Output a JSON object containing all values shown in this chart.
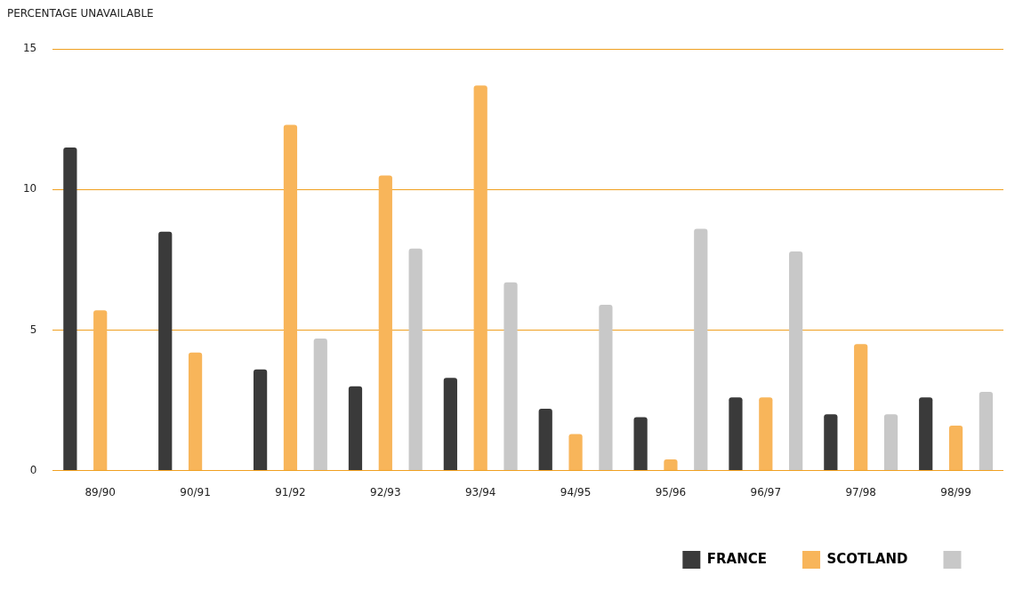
{
  "chart_data": {
    "type": "bar",
    "ylabel": "PERCENTAGE UNAVAILABLE",
    "categories": [
      "89/90",
      "90/91",
      "91/92",
      "92/93",
      "93/94",
      "94/95",
      "95/96",
      "96/97",
      "97/98",
      "98/99"
    ],
    "series": [
      {
        "name": "FRANCE",
        "color": "#3a3a3a",
        "values": [
          11.5,
          8.5,
          3.6,
          3.0,
          3.3,
          2.2,
          1.9,
          2.6,
          2.0,
          2.6
        ]
      },
      {
        "name": "SCOTLAND",
        "color": "#f8b55a",
        "values": [
          5.7,
          4.2,
          12.3,
          10.5,
          13.7,
          1.3,
          0.4,
          2.6,
          4.5,
          1.6
        ]
      },
      {
        "color": "#c8c8c8",
        "values": [
          null,
          null,
          4.7,
          7.9,
          6.7,
          5.9,
          8.6,
          7.8,
          2.0,
          2.8
        ]
      }
    ],
    "ylim": [
      0,
      15
    ],
    "yticks": [
      0,
      5,
      10,
      15
    ],
    "grid": "y",
    "legend": "bottom right"
  }
}
